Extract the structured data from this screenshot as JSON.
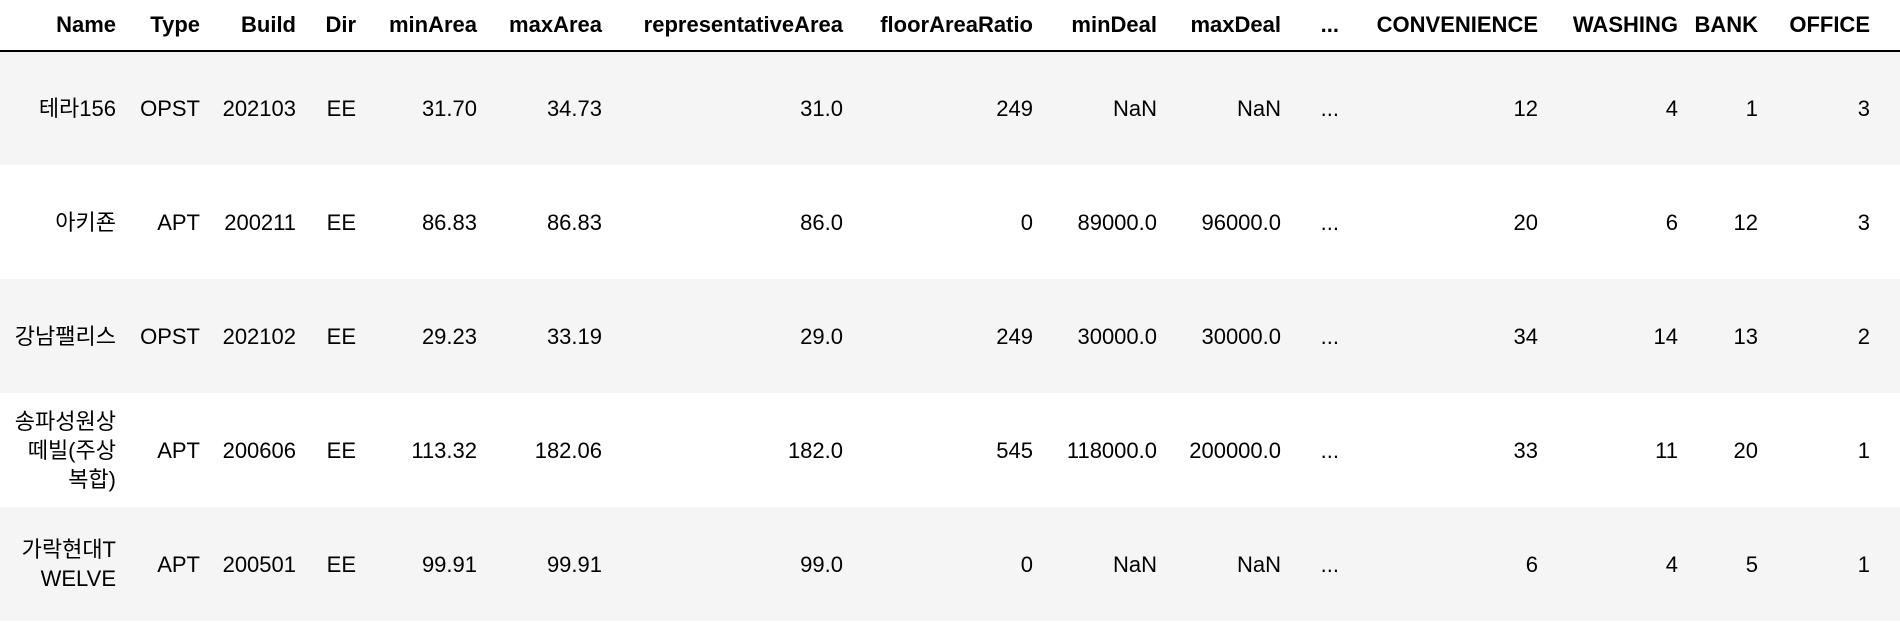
{
  "table": {
    "columns": [
      "Name",
      "Type",
      "Build",
      "Dir",
      "minArea",
      "maxArea",
      "representativeArea",
      "floorAreaRatio",
      "minDeal",
      "maxDeal",
      "...",
      "CONVENIENCE",
      "WASHING",
      "BANK",
      "OFFICE",
      ""
    ],
    "rows": [
      [
        "테라156",
        "OPST",
        "202103",
        "EE",
        "31.70",
        "34.73",
        "31.0",
        "249",
        "NaN",
        "NaN",
        "...",
        "12",
        "4",
        "1",
        "3",
        ""
      ],
      [
        "아키죤",
        "APT",
        "200211",
        "EE",
        "86.83",
        "86.83",
        "86.0",
        "0",
        "89000.0",
        "96000.0",
        "...",
        "20",
        "6",
        "12",
        "3",
        ""
      ],
      [
        "강남팰리스",
        "OPST",
        "202102",
        "EE",
        "29.23",
        "33.19",
        "29.0",
        "249",
        "30000.0",
        "30000.0",
        "...",
        "34",
        "14",
        "13",
        "2",
        ""
      ],
      [
        "송파성원상떼빌(주상복합)",
        "APT",
        "200606",
        "EE",
        "113.32",
        "182.06",
        "182.0",
        "545",
        "118000.0",
        "200000.0",
        "...",
        "33",
        "11",
        "20",
        "1",
        ""
      ],
      [
        "가락현대TWELVE",
        "APT",
        "200501",
        "EE",
        "99.91",
        "99.91",
        "99.0",
        "0",
        "NaN",
        "NaN",
        "...",
        "6",
        "4",
        "5",
        "1",
        ""
      ]
    ]
  }
}
